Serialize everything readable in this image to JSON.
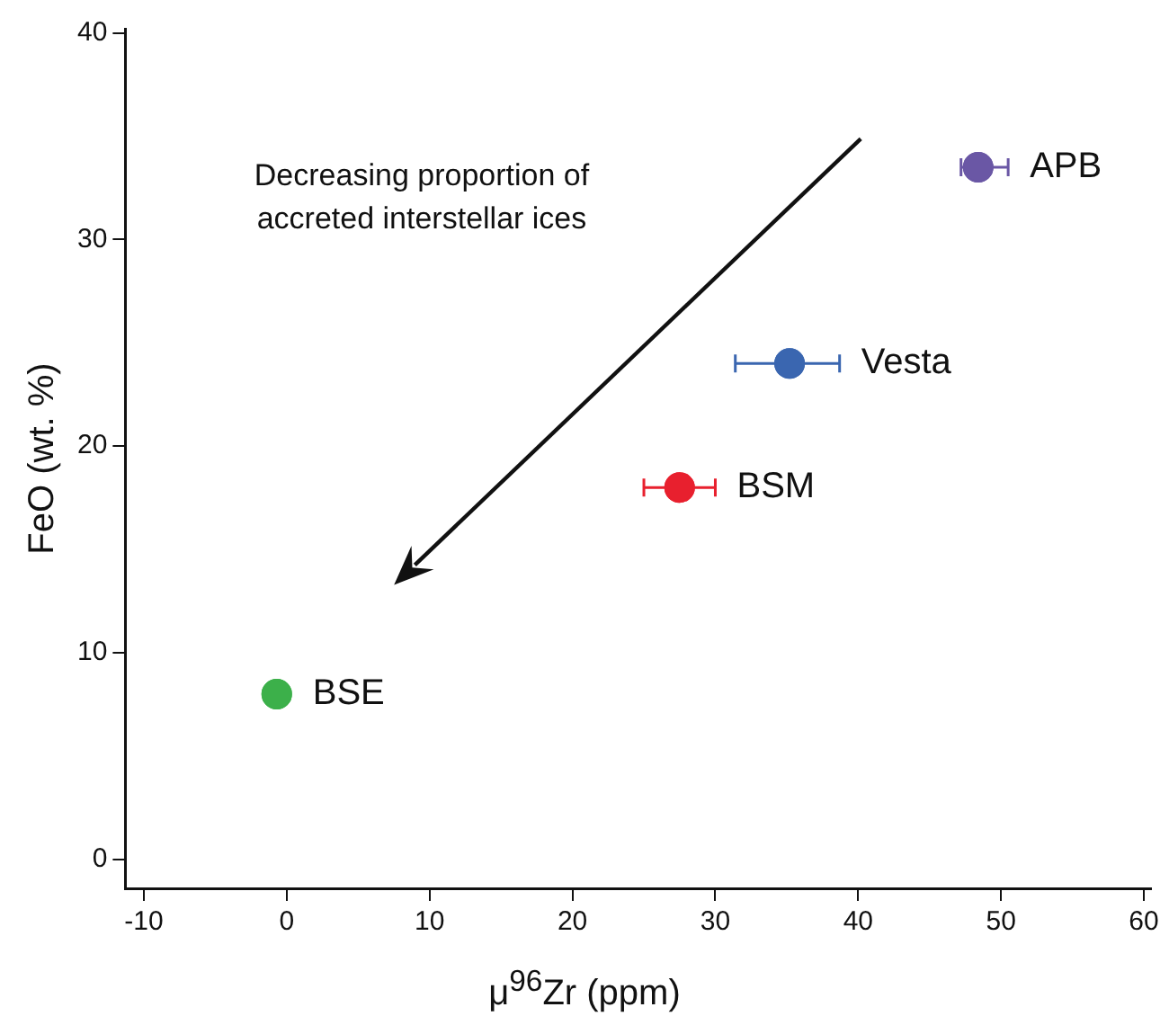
{
  "chart_data": {
    "type": "scatter",
    "xlabel": "μ$^{96}$Zr (ppm)",
    "ylabel": "FeO (wt. %)",
    "annotations": [
      "Decreasing proportion of accreted interstellar ices"
    ],
    "series": [
      {
        "name": "APB",
        "color": "#6a57a5",
        "x": [
          48.4
        ],
        "values": [
          33.5
        ],
        "xerrors": [
          [
            47.2,
            50.5
          ]
        ]
      },
      {
        "name": "Vesta",
        "color": "#3a66b0",
        "x": [
          35.2
        ],
        "values": [
          24
        ],
        "xerrors": [
          [
            31.4,
            38.7
          ]
        ]
      },
      {
        "name": "BSM",
        "color": "#e8202e",
        "x": [
          27.5
        ],
        "values": [
          18
        ],
        "xerrors": [
          [
            25,
            30
          ]
        ]
      },
      {
        "name": "BSE",
        "color": "#3cb04a",
        "x": [
          -0.7
        ],
        "values": [
          8
        ],
        "xerrors": [
          null
        ]
      }
    ],
    "xlim": [
      -11.3,
      60.5
    ],
    "ylim": [
      -1.4,
      40.2
    ],
    "xticks": [
      -10,
      0,
      10,
      20,
      30,
      40,
      50,
      60
    ],
    "yticks": [
      0,
      10,
      20,
      30,
      40
    ],
    "grid": false,
    "legend": false,
    "marker": "circle"
  }
}
